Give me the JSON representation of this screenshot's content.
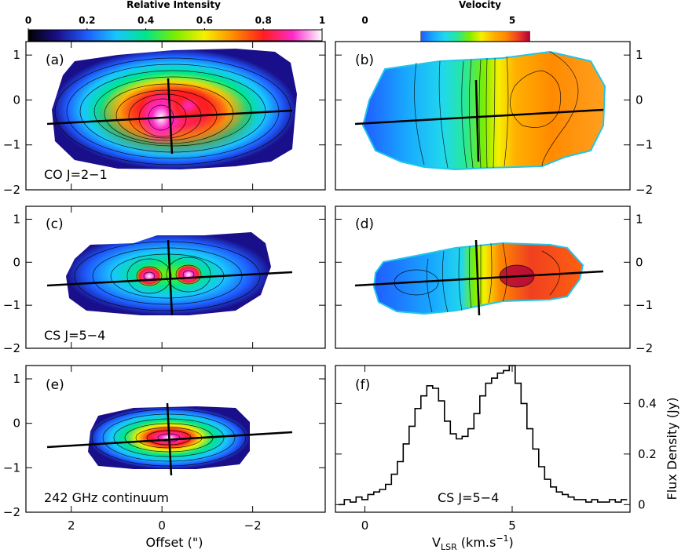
{
  "colorbars": {
    "intensity": {
      "title": "Relative Intensity",
      "ticks": [
        "0",
        "0.2",
        "0.4",
        "0.6",
        "0.8",
        "1"
      ],
      "tick_values": [
        0,
        0.2,
        0.4,
        0.6,
        0.8,
        1
      ],
      "range": [
        0,
        1
      ],
      "colors": [
        "#000000",
        "#1a0f8a",
        "#1f5cff",
        "#18c6ff",
        "#00e68a",
        "#7bee00",
        "#f6f000",
        "#ff8a00",
        "#ff1e1e",
        "#ff2ac8",
        "#ffffff"
      ]
    },
    "velocity": {
      "title": "Velocity",
      "ticks": [
        "0",
        "5"
      ],
      "tick_values": [
        0,
        5
      ],
      "range": [
        -1,
        9
      ],
      "colored_range": [
        1.9,
        5.6
      ],
      "colors": [
        "#1f5cff",
        "#18a8ff",
        "#20d8ee",
        "#27e89a",
        "#7bee00",
        "#f6f000",
        "#ffb000",
        "#ff8a00",
        "#f04020",
        "#b0003a"
      ]
    }
  },
  "panels": {
    "a": {
      "letter": "(a)",
      "label": "CO J=2−1",
      "quantity": "relative intensity"
    },
    "b": {
      "letter": "(b)",
      "quantity": "velocity"
    },
    "c": {
      "letter": "(c)",
      "label": "CS J=5−4",
      "quantity": "relative intensity"
    },
    "d": {
      "letter": "(d)",
      "quantity": "velocity"
    },
    "e": {
      "letter": "(e)",
      "label": "242 GHz continuum",
      "quantity": "relative intensity"
    },
    "f": {
      "letter": "(f)",
      "label": "CS J=5−4"
    }
  },
  "axes": {
    "offset_x": {
      "label": "Offset (\")",
      "ticks": [
        "2",
        "0",
        "−2"
      ],
      "tick_values": [
        2,
        0,
        -2
      ],
      "range": [
        3,
        -3.6
      ]
    },
    "offset_y": {
      "ticks": [
        "1",
        "0",
        "−1",
        "−2"
      ],
      "tick_values": [
        1,
        0,
        -1,
        -2
      ],
      "range": [
        -2,
        1.3
      ]
    },
    "vlsr_x": {
      "label_main": "V",
      "label_sub": "LSR",
      "label_rest": " (km.s",
      "label_sup": "−1",
      "label_end": ")",
      "ticks": [
        "0",
        "5"
      ],
      "tick_values": [
        0,
        5
      ],
      "range": [
        -1,
        9
      ]
    },
    "flux_y": {
      "label": "Flux Density (Jy)",
      "ticks": [
        "0",
        "0.2",
        "0.4"
      ],
      "tick_values": [
        0,
        0.2,
        0.4
      ],
      "range": [
        -0.03,
        0.55
      ]
    }
  },
  "chart_data": [
    {
      "panel": "a",
      "type": "heatmap",
      "title": "CO J=2−1",
      "xlabel": "",
      "ylabel": "",
      "xlim": [
        3,
        -3.6
      ],
      "ylim": [
        -2,
        1.3
      ],
      "features": {
        "peaks": [
          [
            0.3,
            -0.3
          ],
          [
            -0.3,
            -0.1
          ]
        ],
        "axis_line": [
          [
            2.6,
            -0.55
          ],
          [
            -2.9,
            -0.22
          ]
        ],
        "minor_axis_line": [
          [
            -0.05,
            0.55
          ],
          [
            -0.15,
            -1.2
          ]
        ]
      }
    },
    {
      "panel": "b",
      "type": "heatmap",
      "title": "",
      "xlim": [
        3,
        -3.6
      ],
      "ylim": [
        -2,
        1.3
      ],
      "features": {
        "velocity_gradient": {
          "east_kms": 2.0,
          "west_kms": 5.6
        },
        "axis_line": [
          [
            2.6,
            -0.55
          ],
          [
            -2.9,
            -0.22
          ]
        ]
      }
    },
    {
      "panel": "c",
      "type": "heatmap",
      "title": "CS J=5−4",
      "xlim": [
        3,
        -3.6
      ],
      "ylim": [
        -2,
        1.3
      ],
      "features": {
        "peaks": [
          [
            0.3,
            -0.38
          ],
          [
            -0.65,
            -0.3
          ]
        ],
        "axis_line": [
          [
            2.6,
            -0.52
          ],
          [
            -2.9,
            -0.22
          ]
        ]
      }
    },
    {
      "panel": "d",
      "type": "heatmap",
      "title": "",
      "xlim": [
        3,
        -3.6
      ],
      "ylim": [
        -2,
        1.3
      ],
      "features": {
        "velocity_gradient": {
          "east_kms": 1.9,
          "west_kms": 5.6
        }
      }
    },
    {
      "panel": "e",
      "type": "heatmap",
      "title": "242 GHz continuum",
      "xlim": [
        3,
        -3.6
      ],
      "ylim": [
        -2,
        1.3
      ],
      "features": {
        "peaks": [
          [
            -0.1,
            -0.38
          ]
        ]
      }
    },
    {
      "panel": "f",
      "type": "line",
      "title": "CS J=5−4",
      "xlabel": "V_LSR (km.s^-1)",
      "ylabel": "Flux Density (Jy)",
      "xlim": [
        -1,
        9
      ],
      "ylim": [
        -0.03,
        0.55
      ],
      "step": true,
      "series": [
        {
          "name": "CS J=5−4",
          "x": [
            -0.8,
            -0.6,
            -0.4,
            -0.2,
            0.0,
            0.2,
            0.4,
            0.6,
            0.8,
            1.0,
            1.2,
            1.4,
            1.6,
            1.8,
            2.0,
            2.2,
            2.4,
            2.6,
            2.8,
            3.0,
            3.2,
            3.4,
            3.6,
            3.8,
            4.0,
            4.2,
            4.4,
            4.6,
            4.8,
            5.0,
            5.2,
            5.4,
            5.6,
            5.8,
            6.0,
            6.2,
            6.4,
            6.6,
            6.8,
            7.0,
            7.2,
            7.4,
            7.6,
            7.8,
            8.0,
            8.2,
            8.4,
            8.6,
            8.8
          ],
          "values": [
            0.0,
            0.02,
            0.01,
            0.03,
            0.02,
            0.04,
            0.05,
            0.06,
            0.08,
            0.12,
            0.17,
            0.24,
            0.31,
            0.38,
            0.43,
            0.47,
            0.46,
            0.41,
            0.33,
            0.28,
            0.26,
            0.27,
            0.3,
            0.36,
            0.43,
            0.48,
            0.5,
            0.52,
            0.53,
            0.55,
            0.48,
            0.4,
            0.3,
            0.22,
            0.15,
            0.1,
            0.07,
            0.05,
            0.04,
            0.03,
            0.02,
            0.02,
            0.01,
            0.02,
            0.01,
            0.01,
            0.02,
            0.01,
            0.02
          ]
        }
      ]
    }
  ]
}
